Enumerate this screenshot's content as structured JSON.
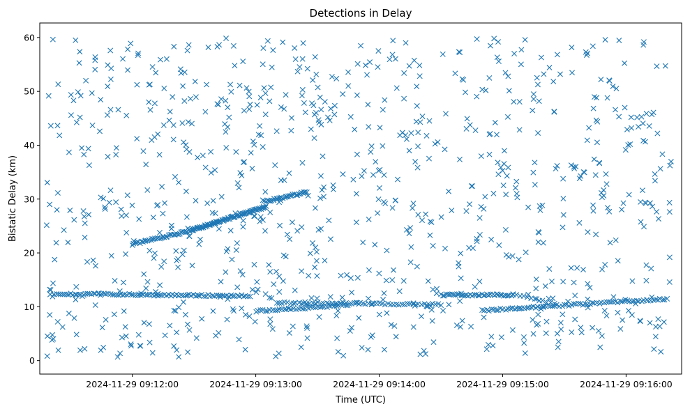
{
  "chart_data": {
    "type": "scatter",
    "title": "Detections in Delay",
    "xlabel": "Time (UTC)",
    "ylabel": "Bistatic Delay (km)",
    "x_ticks": [
      "2024-11-29 09:12:00",
      "2024-11-29 09:13:00",
      "2024-11-29 09:14:00",
      "2024-11-29 09:15:00",
      "2024-11-29 09:16:00"
    ],
    "y_ticks": [
      "0",
      "10",
      "20",
      "30",
      "40",
      "50",
      "60"
    ],
    "xlim": [
      "2024-11-29 09:11:15",
      "2024-11-29 09:16:27"
    ],
    "ylim": [
      -2.5,
      62.7
    ],
    "marker": "x",
    "color": "#1f77b4",
    "grid": false,
    "series": [
      {
        "tracks": [
          {
            "segments": [
              {
                "from": [
                  "2024-11-29 09:11:22",
                  12.4
                ],
                "to": [
                  "2024-11-29 09:12:57",
                  12.0
                ],
                "count": 95
              },
              {
                "from": [
                  "2024-11-29 09:13:00",
                  9.2
                ],
                "to": [
                  "2024-11-29 09:13:45",
                  10.3
                ],
                "count": 40
              },
              {
                "from": [
                  "2024-11-29 09:14:50",
                  9.3
                ],
                "to": [
                  "2024-11-29 09:16:20",
                  11.5
                ],
                "count": 80
              }
            ]
          },
          {
            "segments": [
              {
                "from": [
                  "2024-11-29 09:13:10",
                  10.8
                ],
                "to": [
                  "2024-11-29 09:14:30",
                  10.4
                ],
                "count": 60
              },
              {
                "from": [
                  "2024-11-29 09:14:30",
                  12.2
                ],
                "to": [
                  "2024-11-29 09:15:05",
                  12.2
                ],
                "count": 40
              },
              {
                "from": [
                  "2024-11-29 09:15:05",
                  12.4
                ],
                "to": [
                  "2024-11-29 09:15:25",
                  10.5
                ],
                "count": 12
              }
            ]
          },
          {
            "segments": [
              {
                "from": [
                  "2024-11-29 09:12:00",
                  21.6
                ],
                "to": [
                  "2024-11-29 09:12:29",
                  24.2
                ],
                "count": 40
              },
              {
                "from": [
                  "2024-11-29 09:12:29",
                  24.2
                ],
                "to": [
                  "2024-11-29 09:13:05",
                  28.6
                ],
                "count": 90
              },
              {
                "from": [
                  "2024-11-29 09:13:05",
                  29.6
                ],
                "to": [
                  "2024-11-29 09:13:25",
                  31.3
                ],
                "count": 30
              }
            ]
          }
        ],
        "clutter": {
          "x_range": [
            "2024-11-29 09:11:18",
            "2024-11-29 09:16:22"
          ],
          "y_range": [
            0.5,
            60.0
          ],
          "count": 900
        }
      }
    ]
  }
}
